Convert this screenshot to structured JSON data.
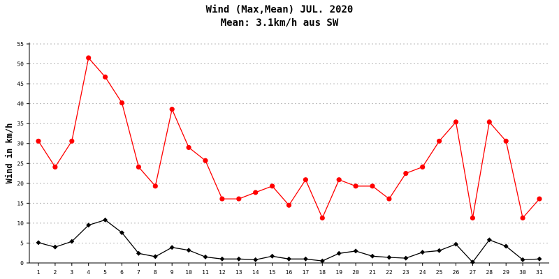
{
  "chart_data": {
    "type": "line",
    "title": "Wind (Max,Mean) JUL. 2020",
    "subtitle": "Mean: 3.1km/h aus SW",
    "xlabel": "",
    "ylabel": "Wind in km/h",
    "ylim": [
      0,
      55
    ],
    "yticks": [
      0,
      5,
      10,
      15,
      20,
      25,
      30,
      35,
      40,
      45,
      50,
      55
    ],
    "categories": [
      "1",
      "2",
      "3",
      "4",
      "5",
      "6",
      "7",
      "8",
      "9",
      "10",
      "11",
      "12",
      "13",
      "14",
      "15",
      "16",
      "17",
      "18",
      "19",
      "20",
      "21",
      "22",
      "23",
      "24",
      "25",
      "26",
      "27",
      "28",
      "29",
      "30",
      "31"
    ],
    "grid": true,
    "series": [
      {
        "color": "#ff0000",
        "marker": "circle",
        "values": [
          30.6,
          24.1,
          30.6,
          51.5,
          46.7,
          40.2,
          24.1,
          19.3,
          38.6,
          29.0,
          25.7,
          16.1,
          16.1,
          17.7,
          19.3,
          14.5,
          20.9,
          11.3,
          20.9,
          19.3,
          19.3,
          16.1,
          22.5,
          24.1,
          30.6,
          35.4,
          11.3,
          35.4,
          30.6,
          11.3,
          16.1
        ]
      },
      {
        "color": "#000000",
        "marker": "diamond",
        "values": [
          5.1,
          4.0,
          5.4,
          9.5,
          10.8,
          7.6,
          2.4,
          1.6,
          3.9,
          3.2,
          1.5,
          1.0,
          1.0,
          0.8,
          1.7,
          1.0,
          1.0,
          0.5,
          2.4,
          3.0,
          1.7,
          1.4,
          1.2,
          2.7,
          3.1,
          4.7,
          0.2,
          5.8,
          4.2,
          0.8,
          1.0
        ]
      }
    ]
  }
}
